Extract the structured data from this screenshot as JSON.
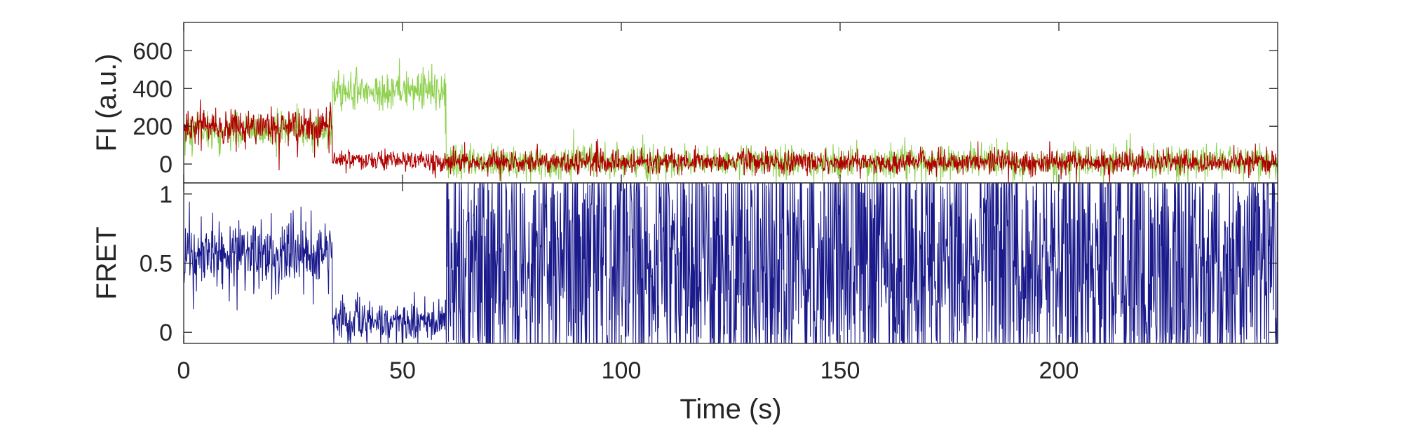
{
  "chart_data": [
    {
      "type": "line",
      "title": "",
      "xlabel": "",
      "ylabel": "FI (a.u.)",
      "xlim": [
        0,
        250
      ],
      "ylim": [
        -100,
        750
      ],
      "yticks": [
        0,
        200,
        400,
        600
      ],
      "ytick_labels": [
        "0",
        "200",
        "400",
        "600"
      ],
      "xticks": [
        0,
        50,
        100,
        150,
        200
      ],
      "grid": false,
      "legend": "none",
      "series": [
        {
          "color": "#8fd14f",
          "segments": [
            {
              "x_start": 0,
              "x_end": 34,
              "mean": 175,
              "noise": 50
            },
            {
              "x_start": 34,
              "x_end": 60,
              "mean": 385,
              "noise": 55
            },
            {
              "x_start": 60,
              "x_end": 250,
              "mean": 10,
              "noise": 40
            }
          ]
        },
        {
          "color": "#b00000",
          "segments": [
            {
              "x_start": 0,
              "x_end": 34,
              "mean": 200,
              "noise": 45
            },
            {
              "x_start": 34,
              "x_end": 60,
              "mean": 20,
              "noise": 25
            },
            {
              "x_start": 60,
              "x_end": 250,
              "mean": 10,
              "noise": 30
            }
          ]
        }
      ]
    },
    {
      "type": "line",
      "title": "",
      "xlabel": "Time (s)",
      "ylabel": "FRET",
      "xlim": [
        0,
        250
      ],
      "ylim": [
        -0.08,
        1.08
      ],
      "yticks": [
        0,
        0.5,
        1
      ],
      "ytick_labels": [
        "0",
        "0.5",
        "1"
      ],
      "xticks": [
        0,
        50,
        100,
        150,
        200
      ],
      "xtick_labels": [
        "0",
        "50",
        "100",
        "150",
        "200"
      ],
      "grid": false,
      "legend": "none",
      "series": [
        {
          "color": "#1a1a8c",
          "segments": [
            {
              "x_start": 0,
              "x_end": 34,
              "mean": 0.55,
              "noise": 0.12
            },
            {
              "x_start": 34,
              "x_end": 60,
              "mean": 0.08,
              "noise": 0.08
            },
            {
              "x_start": 60,
              "x_end": 250,
              "mean": 0.5,
              "noise": 0.6
            }
          ]
        }
      ]
    }
  ]
}
